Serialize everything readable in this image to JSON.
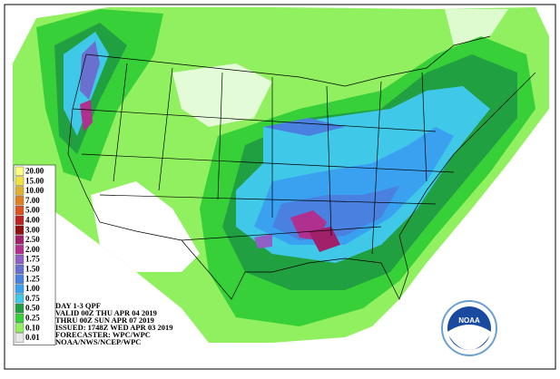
{
  "legend": {
    "items": [
      {
        "label": "20.00",
        "color": "#ffff80"
      },
      {
        "label": "15.00",
        "color": "#f0e040"
      },
      {
        "label": "10.00",
        "color": "#e0b030"
      },
      {
        "label": "7.00",
        "color": "#e08020"
      },
      {
        "label": "5.00",
        "color": "#e05020"
      },
      {
        "label": "4.00",
        "color": "#c02020"
      },
      {
        "label": "3.00",
        "color": "#901010"
      },
      {
        "label": "2.50",
        "color": "#a0206a"
      },
      {
        "label": "2.00",
        "color": "#b03090"
      },
      {
        "label": "1.75",
        "color": "#9060c8"
      },
      {
        "label": "1.50",
        "color": "#6a70d0"
      },
      {
        "label": "1.25",
        "color": "#4a80e0"
      },
      {
        "label": "1.00",
        "color": "#3aa0f0"
      },
      {
        "label": "0.75",
        "color": "#40c8e8"
      },
      {
        "label": "0.50",
        "color": "#20a040"
      },
      {
        "label": "0.25",
        "color": "#38d038"
      },
      {
        "label": "0.10",
        "color": "#90f060"
      },
      {
        "label": "0.01",
        "color": "#e8e8e8"
      }
    ]
  },
  "info": {
    "lines": [
      "DAY 1-3 QPF",
      "VALID 00Z THU APR 04 2019",
      "THRU 00Z SUN APR 07 2019",
      "ISSUED: 1748Z WED APR 03 2019",
      "FORECASTER: WPC/WPC",
      "NOAA/NWS/NCEP/WPC"
    ]
  },
  "logo": {
    "label": "NOAA"
  }
}
